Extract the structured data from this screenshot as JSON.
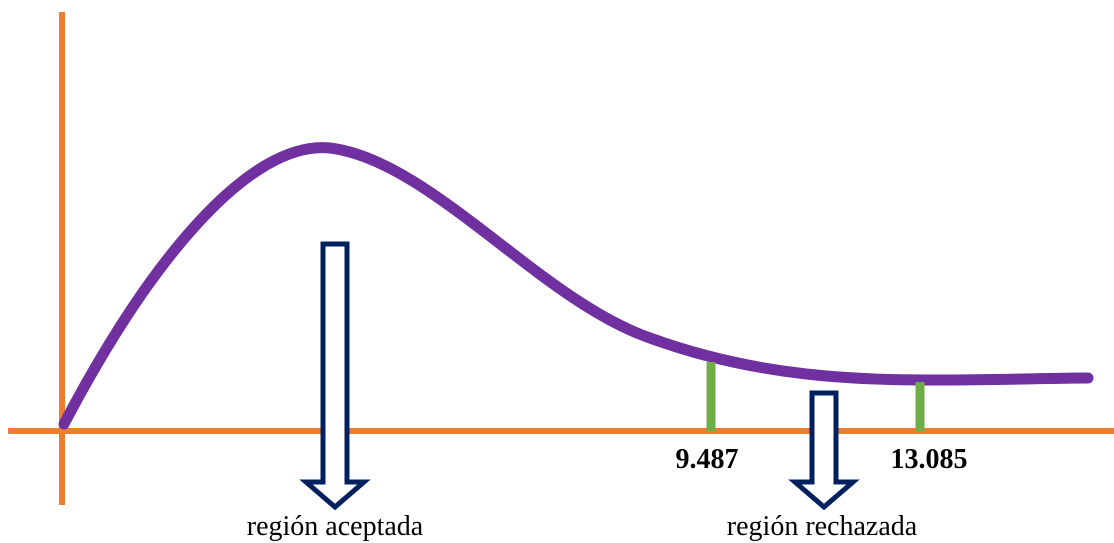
{
  "diagram": {
    "marker_1": {
      "value": "9.487"
    },
    "marker_2": {
      "value": "13.085"
    },
    "accepted_label": "región aceptada",
    "rejected_label": "región rechazada"
  },
  "colors": {
    "axis": "#ED7D31",
    "curve": "#7030A0",
    "marker": "#70AD47",
    "arrow_stroke": "#002060",
    "arrow_fill": "#FFFFFF",
    "text": "#000000"
  }
}
